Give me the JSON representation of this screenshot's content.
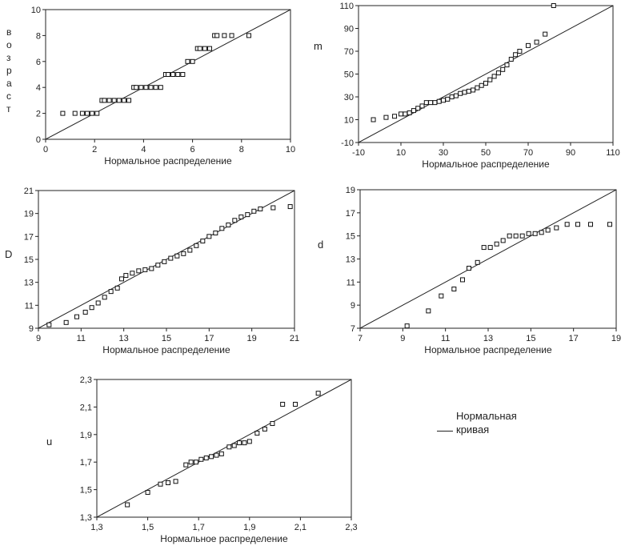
{
  "chart_data": [
    {
      "id": "age",
      "type": "scatter",
      "xlabel": "Нормальное распределение",
      "ylabel": "возраст",
      "xlim": [
        0,
        10
      ],
      "ylim": [
        0,
        10
      ],
      "xticks": [
        "0",
        "2",
        "4",
        "6",
        "8",
        "10"
      ],
      "yticks": [
        "0",
        "2",
        "4",
        "6",
        "8",
        "10"
      ],
      "reference_line": [
        [
          0,
          0
        ],
        [
          10,
          10
        ]
      ],
      "series": [
        {
          "x": [
            0.7,
            1.2,
            1.5,
            1.7,
            1.9,
            2.1,
            2.3,
            2.4,
            2.6,
            2.8,
            3.0,
            3.2,
            3.4,
            3.6,
            3.7,
            3.9,
            4.1,
            4.3,
            4.5,
            4.7,
            4.9,
            5.0,
            5.2,
            5.4,
            5.6,
            5.8,
            6.0,
            6.2,
            6.3,
            6.5,
            6.7,
            6.9,
            7.0,
            7.3,
            7.6,
            8.3
          ],
          "y": [
            2,
            2,
            2,
            2,
            2,
            2,
            3,
            3,
            3,
            3,
            3,
            3,
            3,
            4,
            4,
            4,
            4,
            4,
            4,
            4,
            5,
            5,
            5,
            5,
            5,
            6,
            6,
            7,
            7,
            7,
            7,
            8,
            8,
            8,
            8,
            8
          ]
        }
      ]
    },
    {
      "id": "m",
      "type": "scatter",
      "xlabel": "Нормальное распределение",
      "ylabel": "m",
      "xlim": [
        -10,
        110
      ],
      "ylim": [
        -10,
        110
      ],
      "xticks": [
        "-10",
        "10",
        "30",
        "50",
        "70",
        "90",
        "110"
      ],
      "yticks": [
        "-10",
        "10",
        "30",
        "50",
        "70",
        "90",
        "110"
      ],
      "reference_line": [
        [
          -10,
          -10
        ],
        [
          110,
          110
        ]
      ],
      "series": [
        {
          "x": [
            -3,
            3,
            7,
            10,
            12,
            14,
            16,
            18,
            20,
            22,
            24,
            26,
            28,
            30,
            32,
            34,
            36,
            38,
            40,
            42,
            44,
            46,
            48,
            50,
            52,
            54,
            56,
            58,
            60,
            62,
            64,
            66,
            70,
            74,
            78,
            82
          ],
          "y": [
            10,
            12,
            13,
            15,
            15,
            16,
            18,
            20,
            22,
            25,
            25,
            25,
            26,
            27,
            28,
            30,
            31,
            33,
            34,
            35,
            36,
            38,
            40,
            42,
            45,
            48,
            51,
            54,
            58,
            63,
            67,
            70,
            75,
            78,
            85,
            110
          ]
        }
      ]
    },
    {
      "id": "D",
      "type": "scatter",
      "xlabel": "Нормальное распределение",
      "ylabel": "D",
      "xlim": [
        9,
        21
      ],
      "ylim": [
        9,
        21
      ],
      "xticks": [
        "9",
        "11",
        "13",
        "15",
        "17",
        "19",
        "21"
      ],
      "yticks": [
        "9",
        "11",
        "13",
        "15",
        "17",
        "19",
        "21"
      ],
      "reference_line": [
        [
          9,
          9
        ],
        [
          21,
          21
        ]
      ],
      "series": [
        {
          "x": [
            9.5,
            10.3,
            10.8,
            11.2,
            11.5,
            11.8,
            12.1,
            12.4,
            12.7,
            12.9,
            13.1,
            13.4,
            13.7,
            14.0,
            14.3,
            14.6,
            14.9,
            15.2,
            15.5,
            15.8,
            16.1,
            16.4,
            16.7,
            17.0,
            17.3,
            17.6,
            17.9,
            18.2,
            18.5,
            18.8,
            19.1,
            19.4,
            20.0,
            20.8
          ],
          "y": [
            9.3,
            9.5,
            10.0,
            10.4,
            10.8,
            11.2,
            11.7,
            12.2,
            12.5,
            13.3,
            13.6,
            13.8,
            14.0,
            14.1,
            14.2,
            14.5,
            14.8,
            15.1,
            15.3,
            15.5,
            15.8,
            16.2,
            16.6,
            17.0,
            17.3,
            17.7,
            18.0,
            18.4,
            18.7,
            18.9,
            19.2,
            19.4,
            19.5,
            19.6
          ]
        }
      ]
    },
    {
      "id": "d",
      "type": "scatter",
      "xlabel": "Нормальное распределение",
      "ylabel": "d",
      "xlim": [
        7,
        19
      ],
      "ylim": [
        7,
        19
      ],
      "xticks": [
        "7",
        "9",
        "11",
        "13",
        "15",
        "17",
        "19"
      ],
      "yticks": [
        "7",
        "9",
        "11",
        "13",
        "15",
        "17",
        "19"
      ],
      "reference_line": [
        [
          7,
          7
        ],
        [
          19,
          19
        ]
      ],
      "series": [
        {
          "x": [
            9.2,
            10.2,
            10.8,
            11.4,
            11.8,
            12.1,
            12.5,
            12.8,
            13.1,
            13.4,
            13.7,
            14.0,
            14.3,
            14.6,
            14.9,
            15.2,
            15.5,
            15.8,
            16.2,
            16.7,
            17.2,
            17.8,
            18.7
          ],
          "y": [
            7.2,
            8.5,
            9.8,
            10.4,
            11.2,
            12.2,
            12.7,
            14.0,
            14.0,
            14.3,
            14.6,
            15.0,
            15.0,
            15.0,
            15.2,
            15.2,
            15.3,
            15.5,
            15.7,
            16.0,
            16.0,
            16.0,
            16.0
          ]
        }
      ]
    },
    {
      "id": "u",
      "type": "scatter",
      "xlabel": "Нормальное распределение",
      "ylabel": "u",
      "xlim": [
        1.3,
        2.3
      ],
      "ylim": [
        1.3,
        2.3
      ],
      "xticks": [
        "1,3",
        "1,5",
        "1,7",
        "1,9",
        "2,1",
        "2,3"
      ],
      "yticks": [
        "1,3",
        "1,5",
        "1,7",
        "1,9",
        "2,1",
        "2,3"
      ],
      "reference_line": [
        [
          1.3,
          1.3
        ],
        [
          2.3,
          2.3
        ]
      ],
      "series": [
        {
          "x": [
            1.42,
            1.5,
            1.55,
            1.58,
            1.61,
            1.65,
            1.67,
            1.69,
            1.71,
            1.73,
            1.75,
            1.77,
            1.79,
            1.82,
            1.84,
            1.86,
            1.88,
            1.9,
            1.93,
            1.96,
            1.99,
            2.03,
            2.08,
            2.17
          ],
          "y": [
            1.39,
            1.48,
            1.54,
            1.55,
            1.56,
            1.68,
            1.7,
            1.7,
            1.72,
            1.73,
            1.74,
            1.75,
            1.76,
            1.81,
            1.82,
            1.84,
            1.84,
            1.85,
            1.91,
            1.94,
            1.98,
            2.12,
            2.12,
            2.2
          ]
        }
      ]
    }
  ],
  "legend": {
    "title": "Нормальная",
    "line_label": "кривая",
    "line_color": "#222222"
  },
  "colors": {
    "axis": "#222222",
    "marker_stroke": "#111111",
    "marker_fill": "#ffffff",
    "text": "#222222"
  }
}
